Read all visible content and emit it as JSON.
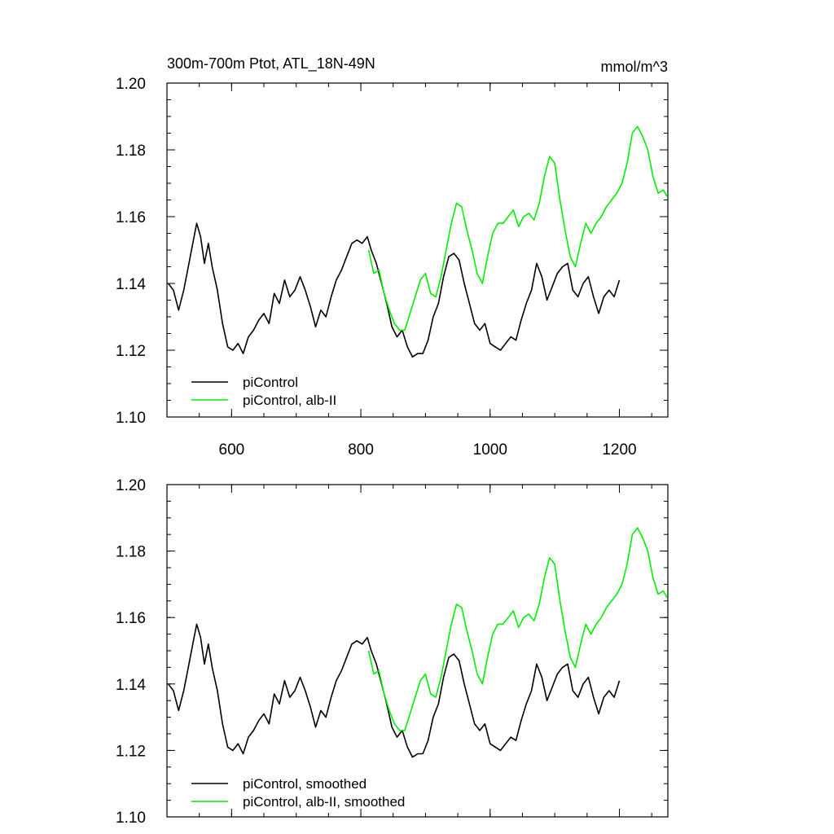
{
  "colors": {
    "piControl": "#000000",
    "albII": "#00ee00",
    "axis": "#000000",
    "background": "#ffffff"
  },
  "chart_data": [
    {
      "type": "line",
      "title": "300m-700m Ptot, ATL_18N-49N",
      "units": "mmol/m^3",
      "xlim": [
        500,
        1275
      ],
      "ylim": [
        1.1,
        1.2
      ],
      "x_ticks": [
        600,
        800,
        1000,
        1200
      ],
      "x_tick_labels": [
        "600",
        "800",
        "1000",
        "1200"
      ],
      "y_ticks": [
        1.1,
        1.12,
        1.14,
        1.16,
        1.18,
        1.2
      ],
      "y_tick_labels": [
        "1.10",
        "1.12",
        "1.14",
        "1.16",
        "1.18",
        "1.20"
      ],
      "grid": false,
      "legend_position": "bottom-left",
      "series": [
        {
          "name": "piControl",
          "color": "#000000",
          "x": [
            502,
            510,
            518,
            526,
            534,
            540,
            546,
            552,
            558,
            564,
            570,
            578,
            586,
            594,
            602,
            610,
            618,
            626,
            634,
            642,
            650,
            658,
            666,
            674,
            682,
            690,
            698,
            706,
            714,
            722,
            730,
            738,
            746,
            754,
            762,
            770,
            778,
            786,
            794,
            802,
            810,
            816,
            824,
            832,
            840,
            848,
            856,
            864,
            872,
            880,
            888,
            896,
            904,
            912,
            920,
            928,
            936,
            944,
            952,
            960,
            968,
            976,
            984,
            992,
            1000,
            1008,
            1016,
            1024,
            1032,
            1040,
            1048,
            1056,
            1064,
            1072,
            1080,
            1088,
            1096,
            1104,
            1112,
            1120,
            1128,
            1136,
            1144,
            1152,
            1160,
            1168,
            1176,
            1184,
            1192,
            1200
          ],
          "y": [
            1.14,
            1.138,
            1.132,
            1.138,
            1.146,
            1.152,
            1.158,
            1.154,
            1.146,
            1.152,
            1.145,
            1.138,
            1.128,
            1.121,
            1.12,
            1.122,
            1.119,
            1.124,
            1.126,
            1.129,
            1.131,
            1.128,
            1.137,
            1.134,
            1.141,
            1.136,
            1.138,
            1.142,
            1.138,
            1.133,
            1.127,
            1.132,
            1.13,
            1.136,
            1.141,
            1.144,
            1.148,
            1.152,
            1.153,
            1.152,
            1.154,
            1.15,
            1.146,
            1.14,
            1.134,
            1.127,
            1.124,
            1.126,
            1.121,
            1.118,
            1.119,
            1.119,
            1.123,
            1.13,
            1.134,
            1.142,
            1.148,
            1.149,
            1.147,
            1.14,
            1.134,
            1.128,
            1.126,
            1.128,
            1.122,
            1.121,
            1.12,
            1.122,
            1.124,
            1.123,
            1.129,
            1.134,
            1.138,
            1.146,
            1.142,
            1.135,
            1.139,
            1.143,
            1.145,
            1.146,
            1.138,
            1.136,
            1.14,
            1.142,
            1.136,
            1.131,
            1.136,
            1.138,
            1.136,
            1.141
          ]
        },
        {
          "name": "piControl, alb-II",
          "color": "#00ee00",
          "x": [
            812,
            820,
            828,
            836,
            844,
            852,
            860,
            868,
            876,
            884,
            892,
            900,
            908,
            916,
            924,
            932,
            940,
            948,
            956,
            964,
            972,
            980,
            988,
            996,
            1004,
            1012,
            1020,
            1028,
            1036,
            1044,
            1052,
            1060,
            1068,
            1076,
            1084,
            1092,
            1100,
            1108,
            1116,
            1124,
            1132,
            1140,
            1148,
            1156,
            1164,
            1172,
            1180,
            1188,
            1196,
            1204,
            1212,
            1220,
            1228,
            1236,
            1244,
            1252,
            1260,
            1268,
            1274
          ],
          "y": [
            1.15,
            1.143,
            1.144,
            1.137,
            1.132,
            1.128,
            1.126,
            1.126,
            1.131,
            1.136,
            1.141,
            1.143,
            1.137,
            1.136,
            1.142,
            1.15,
            1.158,
            1.164,
            1.163,
            1.156,
            1.15,
            1.143,
            1.14,
            1.148,
            1.155,
            1.158,
            1.158,
            1.16,
            1.162,
            1.157,
            1.16,
            1.161,
            1.159,
            1.164,
            1.172,
            1.178,
            1.176,
            1.165,
            1.156,
            1.148,
            1.145,
            1.152,
            1.158,
            1.155,
            1.158,
            1.16,
            1.163,
            1.165,
            1.167,
            1.17,
            1.176,
            1.185,
            1.187,
            1.184,
            1.18,
            1.172,
            1.167,
            1.168,
            1.166
          ]
        }
      ]
    },
    {
      "type": "line",
      "xlim": [
        500,
        1275
      ],
      "ylim": [
        1.1,
        1.2
      ],
      "x_ticks": [
        600,
        800,
        1000,
        1200
      ],
      "y_ticks": [
        1.1,
        1.12,
        1.14,
        1.16,
        1.18,
        1.2
      ],
      "y_tick_labels": [
        "1.10",
        "1.12",
        "1.14",
        "1.16",
        "1.18",
        "1.20"
      ],
      "grid": false,
      "legend_position": "bottom-left",
      "series": [
        {
          "name": "piControl, smoothed",
          "color": "#000000",
          "x": [
            502,
            510,
            518,
            526,
            534,
            540,
            546,
            552,
            558,
            564,
            570,
            578,
            586,
            594,
            602,
            610,
            618,
            626,
            634,
            642,
            650,
            658,
            666,
            674,
            682,
            690,
            698,
            706,
            714,
            722,
            730,
            738,
            746,
            754,
            762,
            770,
            778,
            786,
            794,
            802,
            810,
            816,
            824,
            832,
            840,
            848,
            856,
            864,
            872,
            880,
            888,
            896,
            904,
            912,
            920,
            928,
            936,
            944,
            952,
            960,
            968,
            976,
            984,
            992,
            1000,
            1008,
            1016,
            1024,
            1032,
            1040,
            1048,
            1056,
            1064,
            1072,
            1080,
            1088,
            1096,
            1104,
            1112,
            1120,
            1128,
            1136,
            1144,
            1152,
            1160,
            1168,
            1176,
            1184,
            1192,
            1200
          ],
          "y": [
            1.14,
            1.138,
            1.132,
            1.138,
            1.146,
            1.152,
            1.158,
            1.154,
            1.146,
            1.152,
            1.145,
            1.138,
            1.128,
            1.121,
            1.12,
            1.122,
            1.119,
            1.124,
            1.126,
            1.129,
            1.131,
            1.128,
            1.137,
            1.134,
            1.141,
            1.136,
            1.138,
            1.142,
            1.138,
            1.133,
            1.127,
            1.132,
            1.13,
            1.136,
            1.141,
            1.144,
            1.148,
            1.152,
            1.153,
            1.152,
            1.154,
            1.15,
            1.146,
            1.14,
            1.134,
            1.127,
            1.124,
            1.126,
            1.121,
            1.118,
            1.119,
            1.119,
            1.123,
            1.13,
            1.134,
            1.142,
            1.148,
            1.149,
            1.147,
            1.14,
            1.134,
            1.128,
            1.126,
            1.128,
            1.122,
            1.121,
            1.12,
            1.122,
            1.124,
            1.123,
            1.129,
            1.134,
            1.138,
            1.146,
            1.142,
            1.135,
            1.139,
            1.143,
            1.145,
            1.146,
            1.138,
            1.136,
            1.14,
            1.142,
            1.136,
            1.131,
            1.136,
            1.138,
            1.136,
            1.141
          ]
        },
        {
          "name": "piControl, alb-II, smoothed",
          "color": "#00ee00",
          "x": [
            812,
            820,
            828,
            836,
            844,
            852,
            860,
            868,
            876,
            884,
            892,
            900,
            908,
            916,
            924,
            932,
            940,
            948,
            956,
            964,
            972,
            980,
            988,
            996,
            1004,
            1012,
            1020,
            1028,
            1036,
            1044,
            1052,
            1060,
            1068,
            1076,
            1084,
            1092,
            1100,
            1108,
            1116,
            1124,
            1132,
            1140,
            1148,
            1156,
            1164,
            1172,
            1180,
            1188,
            1196,
            1204,
            1212,
            1220,
            1228,
            1236,
            1244,
            1252,
            1260,
            1268,
            1274
          ],
          "y": [
            1.15,
            1.143,
            1.144,
            1.137,
            1.132,
            1.128,
            1.126,
            1.126,
            1.131,
            1.136,
            1.141,
            1.143,
            1.137,
            1.136,
            1.142,
            1.15,
            1.158,
            1.164,
            1.163,
            1.156,
            1.15,
            1.143,
            1.14,
            1.148,
            1.155,
            1.158,
            1.158,
            1.16,
            1.162,
            1.157,
            1.16,
            1.161,
            1.159,
            1.164,
            1.172,
            1.178,
            1.176,
            1.165,
            1.156,
            1.148,
            1.145,
            1.152,
            1.158,
            1.155,
            1.158,
            1.16,
            1.163,
            1.165,
            1.167,
            1.17,
            1.176,
            1.185,
            1.187,
            1.184,
            1.18,
            1.172,
            1.167,
            1.168,
            1.166
          ]
        }
      ]
    }
  ]
}
